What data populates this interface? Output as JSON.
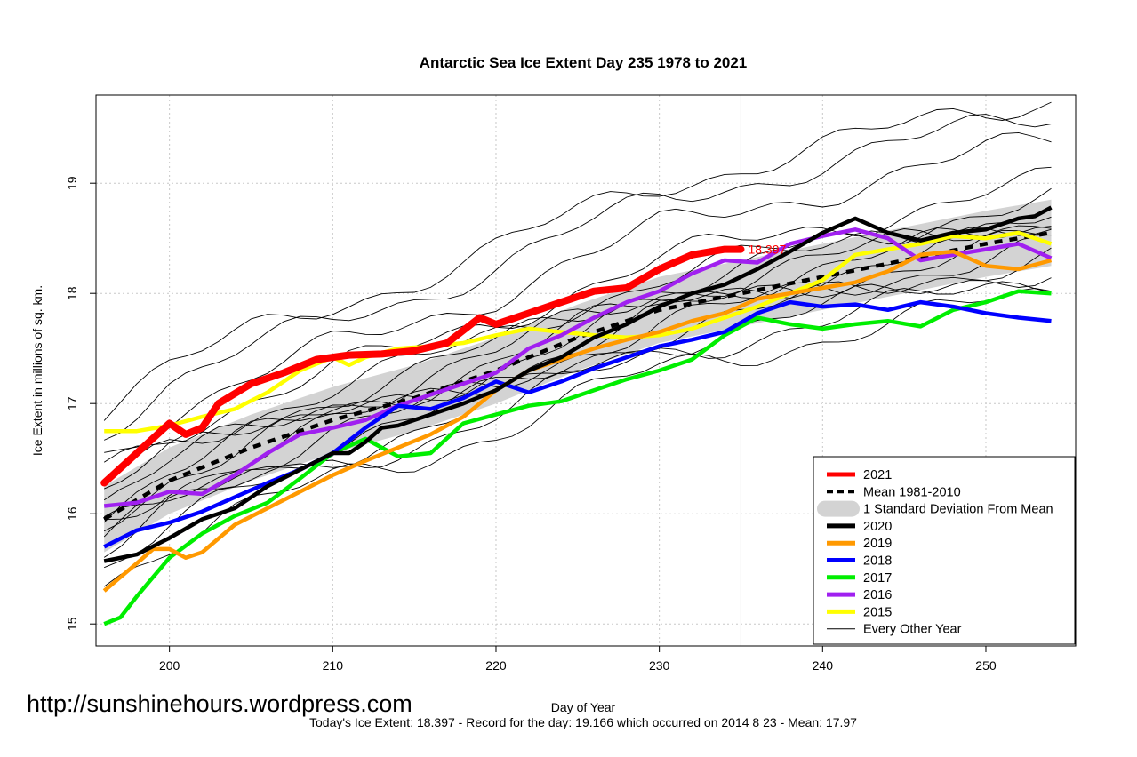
{
  "chart_data": {
    "type": "line",
    "title": "Antarctic Sea Ice Extent Day 235 1978 to 2021",
    "xlabel": "Day of Year",
    "ylabel": "Ice Extent in millions of sq. km.",
    "xlim": [
      195.5,
      255.5
    ],
    "ylim": [
      14.8,
      19.8
    ],
    "xticks": [
      200,
      210,
      220,
      230,
      240,
      250
    ],
    "yticks": [
      15,
      16,
      17,
      18,
      19
    ],
    "grid": true,
    "current_day_marker": 235,
    "current_value_label": "18.397",
    "legend_position": "bottom-right",
    "legend": [
      {
        "label": "2021",
        "color": "#ff0000",
        "style": "thick"
      },
      {
        "label": "Mean 1981-2010",
        "color": "#000000",
        "style": "dashed"
      },
      {
        "label": "1 Standard Deviation From Mean",
        "color": "#d3d3d3",
        "style": "band"
      },
      {
        "label": "2020",
        "color": "#000000",
        "style": "thick"
      },
      {
        "label": "2019",
        "color": "#ff9900",
        "style": "thick"
      },
      {
        "label": "2018",
        "color": "#0000ff",
        "style": "thick"
      },
      {
        "label": "2017",
        "color": "#00ee00",
        "style": "thick"
      },
      {
        "label": "2016",
        "color": "#a020f0",
        "style": "thick"
      },
      {
        "label": "2015",
        "color": "#ffff00",
        "style": "thick"
      },
      {
        "label": "Every Other Year",
        "color": "#000000",
        "style": "thin"
      }
    ],
    "mean": {
      "x": [
        196,
        200,
        205,
        210,
        215,
        220,
        225,
        230,
        235,
        240,
        245,
        250,
        254
      ],
      "values": [
        15.95,
        16.3,
        16.6,
        16.85,
        17.05,
        17.3,
        17.6,
        17.85,
        18.0,
        18.15,
        18.3,
        18.45,
        18.55
      ]
    },
    "std_band": {
      "x": [
        196,
        200,
        205,
        210,
        215,
        220,
        225,
        230,
        235,
        240,
        245,
        250,
        254
      ],
      "upper": [
        16.25,
        16.6,
        16.9,
        17.15,
        17.35,
        17.6,
        17.9,
        18.15,
        18.3,
        18.45,
        18.6,
        18.75,
        18.85
      ],
      "lower": [
        15.65,
        16.0,
        16.3,
        16.55,
        16.75,
        17.0,
        17.3,
        17.55,
        17.7,
        17.85,
        18.0,
        18.15,
        18.25
      ]
    },
    "series": [
      {
        "name": "2021",
        "color": "#ff0000",
        "width": 8,
        "x": [
          196,
          198,
          200,
          201,
          202,
          203,
          205,
          207,
          209,
          211,
          213,
          215,
          217,
          219,
          220,
          222,
          224,
          226,
          228,
          230,
          232,
          234,
          235
        ],
        "values": [
          16.28,
          16.55,
          16.82,
          16.72,
          16.78,
          17.0,
          17.18,
          17.28,
          17.4,
          17.44,
          17.45,
          17.48,
          17.55,
          17.78,
          17.72,
          17.82,
          17.92,
          18.02,
          18.05,
          18.22,
          18.35,
          18.4,
          18.4
        ]
      }
    ],
    "highlight_years": [
      {
        "name": "2020",
        "color": "#000000",
        "x": [
          196,
          198,
          200,
          202,
          204,
          206,
          208,
          210,
          211,
          212,
          213,
          214,
          216,
          218,
          220,
          222,
          224,
          226,
          228,
          230,
          232,
          234,
          236,
          238,
          240,
          242,
          244,
          246,
          248,
          250,
          252,
          253,
          254
        ],
        "values": [
          15.57,
          15.63,
          15.78,
          15.95,
          16.05,
          16.25,
          16.4,
          16.55,
          16.55,
          16.65,
          16.78,
          16.8,
          16.9,
          17.0,
          17.12,
          17.3,
          17.42,
          17.6,
          17.72,
          17.88,
          18.0,
          18.08,
          18.22,
          18.38,
          18.55,
          18.68,
          18.55,
          18.48,
          18.55,
          18.58,
          18.68,
          18.7,
          18.78
        ]
      },
      {
        "name": "2019",
        "color": "#ff9900",
        "x": [
          196,
          198,
          199,
          200,
          201,
          202,
          204,
          206,
          208,
          210,
          212,
          214,
          216,
          218,
          220,
          222,
          224,
          226,
          228,
          230,
          232,
          234,
          236,
          238,
          240,
          242,
          244,
          246,
          248,
          250,
          252,
          254
        ],
        "values": [
          15.3,
          15.55,
          15.68,
          15.68,
          15.6,
          15.65,
          15.9,
          16.05,
          16.2,
          16.35,
          16.48,
          16.6,
          16.72,
          16.88,
          17.12,
          17.3,
          17.4,
          17.5,
          17.58,
          17.65,
          17.75,
          17.82,
          17.95,
          18.0,
          18.05,
          18.1,
          18.2,
          18.35,
          18.38,
          18.25,
          18.22,
          18.3
        ]
      },
      {
        "name": "2018",
        "color": "#0000ff",
        "x": [
          196,
          198,
          200,
          202,
          204,
          206,
          208,
          210,
          212,
          214,
          216,
          218,
          220,
          222,
          224,
          226,
          228,
          230,
          232,
          234,
          236,
          238,
          240,
          242,
          244,
          246,
          248,
          250,
          252,
          254
        ],
        "values": [
          15.7,
          15.85,
          15.92,
          16.02,
          16.15,
          16.28,
          16.4,
          16.55,
          16.78,
          16.98,
          16.95,
          17.05,
          17.2,
          17.1,
          17.2,
          17.32,
          17.42,
          17.52,
          17.58,
          17.65,
          17.82,
          17.92,
          17.88,
          17.9,
          17.85,
          17.92,
          17.88,
          17.82,
          17.78,
          17.75
        ]
      },
      {
        "name": "2017",
        "color": "#00ee00",
        "x": [
          196,
          197,
          198,
          200,
          202,
          204,
          206,
          208,
          210,
          212,
          214,
          216,
          218,
          220,
          222,
          224,
          226,
          228,
          230,
          232,
          234,
          236,
          238,
          240,
          242,
          244,
          246,
          248,
          250,
          252,
          254
        ],
        "values": [
          15.0,
          15.06,
          15.25,
          15.6,
          15.82,
          15.98,
          16.1,
          16.32,
          16.55,
          16.68,
          16.52,
          16.55,
          16.82,
          16.9,
          16.98,
          17.02,
          17.12,
          17.22,
          17.3,
          17.4,
          17.62,
          17.78,
          17.72,
          17.68,
          17.72,
          17.75,
          17.7,
          17.85,
          17.92,
          18.02,
          18.0
        ]
      },
      {
        "name": "2016",
        "color": "#a020f0",
        "x": [
          196,
          198,
          200,
          202,
          204,
          206,
          208,
          210,
          212,
          214,
          216,
          218,
          220,
          222,
          224,
          226,
          228,
          230,
          232,
          234,
          236,
          238,
          240,
          242,
          244,
          246,
          248,
          250,
          252,
          254
        ],
        "values": [
          16.07,
          16.1,
          16.2,
          16.18,
          16.35,
          16.55,
          16.72,
          16.78,
          16.85,
          16.98,
          17.08,
          17.18,
          17.28,
          17.5,
          17.62,
          17.78,
          17.92,
          18.02,
          18.18,
          18.3,
          18.28,
          18.45,
          18.52,
          18.58,
          18.5,
          18.3,
          18.35,
          18.4,
          18.45,
          18.32
        ]
      },
      {
        "name": "2015",
        "color": "#ffff00",
        "x": [
          196,
          198,
          200,
          202,
          204,
          206,
          208,
          210,
          211,
          212,
          214,
          216,
          218,
          220,
          222,
          224,
          226,
          228,
          230,
          232,
          234,
          236,
          238,
          240,
          242,
          244,
          246,
          248,
          250,
          252,
          254
        ],
        "values": [
          16.75,
          16.75,
          16.8,
          16.88,
          16.95,
          17.1,
          17.3,
          17.42,
          17.35,
          17.42,
          17.5,
          17.52,
          17.55,
          17.62,
          17.68,
          17.65,
          17.62,
          17.6,
          17.62,
          17.68,
          17.78,
          17.88,
          18.0,
          18.12,
          18.35,
          18.4,
          18.45,
          18.52,
          18.5,
          18.55,
          18.45
        ]
      }
    ],
    "other_years_note": "Every Other Year",
    "footer": "Today's Ice Extent: 18.397  - Record for the day: 19.166 which occurred on 2014 8 23  - Mean: 17.97"
  },
  "watermark": "http://sunshinehours.wordpress.com"
}
